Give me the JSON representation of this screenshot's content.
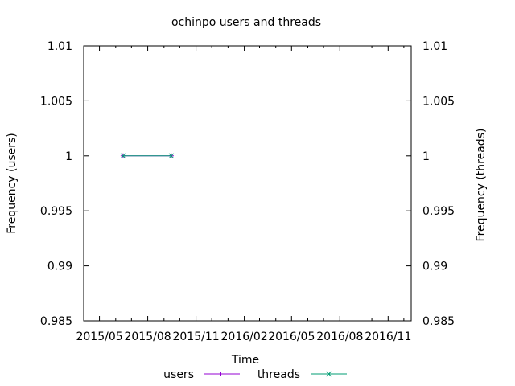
{
  "chart_data": {
    "type": "line",
    "title": "ochinpo users and threads",
    "xlabel": "Time",
    "ylabel": "Frequency (users)",
    "y2label": "Frequency (threads)",
    "x_ticks": [
      "2015/05",
      "2015/08",
      "2015/11",
      "2016/02",
      "2016/05",
      "2016/08",
      "2016/11"
    ],
    "xlim": [
      "2015-04-01",
      "2016-12-15"
    ],
    "ylim": [
      0.985,
      1.01
    ],
    "y2lim": [
      0.985,
      1.01
    ],
    "y_ticks": [
      "0.985",
      "0.99",
      "0.995",
      "1",
      "1.005",
      "1.01"
    ],
    "y_tick_values": [
      0.985,
      0.99,
      0.995,
      1,
      1.005,
      1.01
    ],
    "y2_ticks": [
      "0.985",
      "0.99",
      "0.995",
      "1",
      "1.005",
      "1.01"
    ],
    "grid": false,
    "legend_position": "bottom",
    "series": [
      {
        "name": "users",
        "axis": "y",
        "color": "#9400d3",
        "marker": "plus",
        "points": [
          {
            "x": "2015-06-15",
            "y": 1
          },
          {
            "x": "2015-09-15",
            "y": 1
          }
        ]
      },
      {
        "name": "threads",
        "axis": "y2",
        "color": "#009e73",
        "marker": "cross",
        "points": [
          {
            "x": "2015-06-15",
            "y": 1
          },
          {
            "x": "2015-09-15",
            "y": 1
          }
        ]
      }
    ]
  }
}
